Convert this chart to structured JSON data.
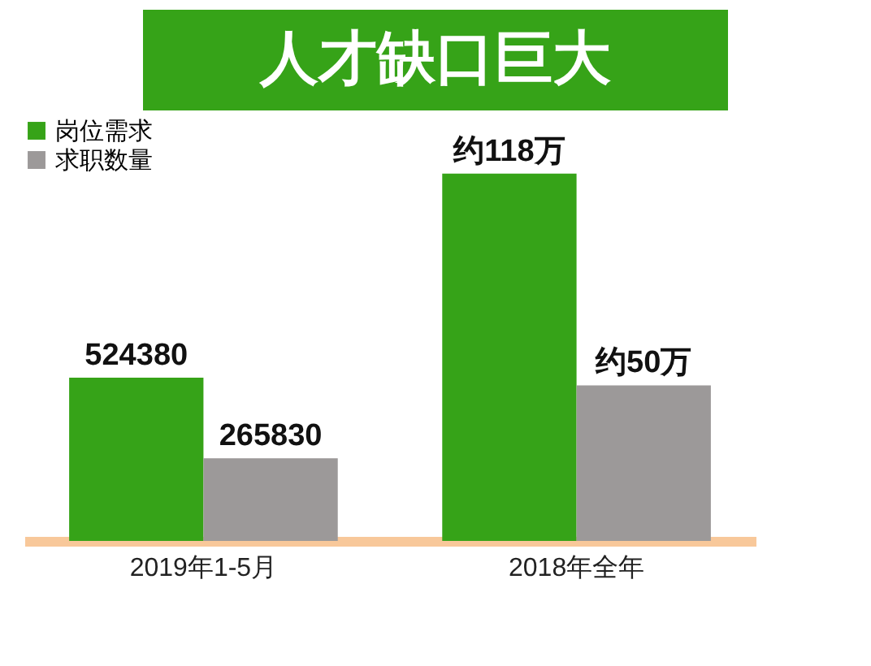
{
  "chart_data": {
    "type": "bar",
    "title": "人才缺口巨大",
    "categories": [
      "2019年1-5月",
      "2018年全年"
    ],
    "series": [
      {
        "name": "岗位需求",
        "color": "#36a318",
        "values": [
          524380,
          1180000
        ],
        "value_labels": [
          "524380",
          "约118万"
        ]
      },
      {
        "name": "求职数量",
        "color": "#9c9999",
        "values": [
          265830,
          500000
        ],
        "value_labels": [
          "265830",
          "约50万"
        ]
      }
    ],
    "legend": "top left"
  }
}
